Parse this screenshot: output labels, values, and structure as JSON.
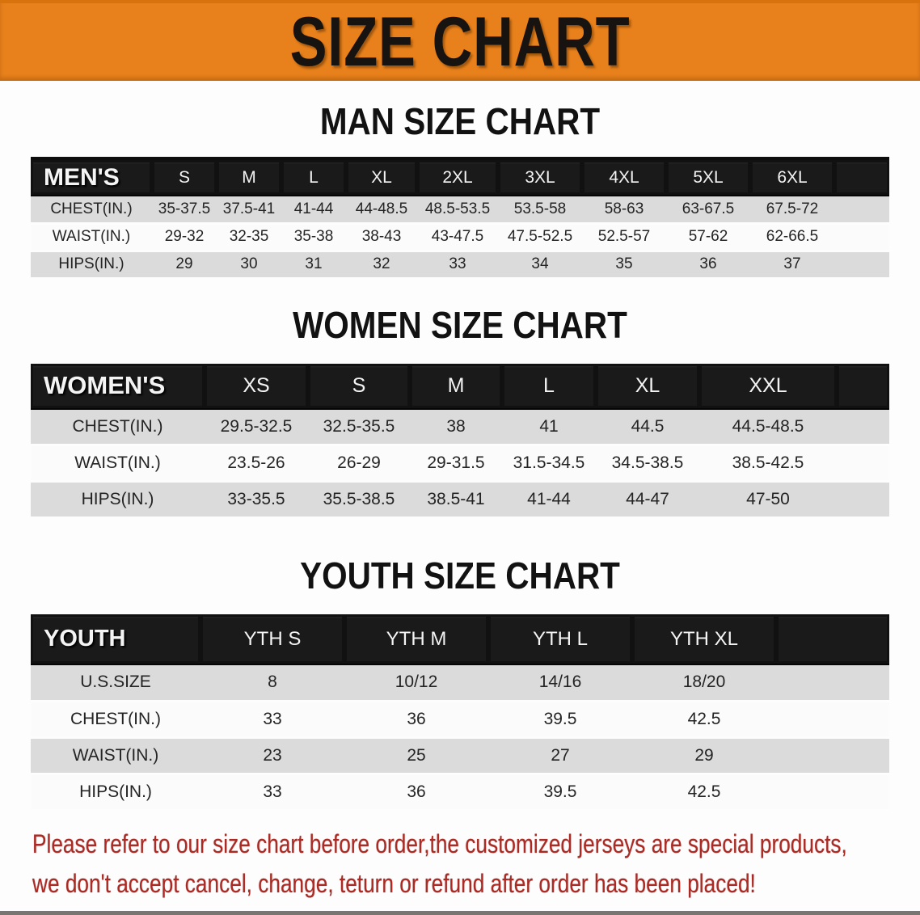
{
  "banner": {
    "title": "SIZE CHART"
  },
  "sections": [
    {
      "heading": "MAN SIZE CHART",
      "table": {
        "label": "MEN'S",
        "columns": [
          "S",
          "M",
          "L",
          "XL",
          "2XL",
          "3XL",
          "4XL",
          "5XL",
          "6XL"
        ],
        "rows": [
          {
            "label": "CHEST(IN.)",
            "values": [
              "35-37.5",
              "37.5-41",
              "41-44",
              "44-48.5",
              "48.5-53.5",
              "53.5-58",
              "58-63",
              "63-67.5",
              "67.5-72"
            ]
          },
          {
            "label": "WAIST(IN.)",
            "values": [
              "29-32",
              "32-35",
              "35-38",
              "38-43",
              "43-47.5",
              "47.5-52.5",
              "52.5-57",
              "57-62",
              "62-66.5"
            ]
          },
          {
            "label": "HIPS(IN.)",
            "values": [
              "29",
              "30",
              "31",
              "32",
              "33",
              "34",
              "35",
              "36",
              "37"
            ]
          }
        ]
      }
    },
    {
      "heading": "WOMEN SIZE CHART",
      "table": {
        "label": "WOMEN'S",
        "columns": [
          "XS",
          "S",
          "M",
          "L",
          "XL",
          "XXL"
        ],
        "rows": [
          {
            "label": "CHEST(IN.)",
            "values": [
              "29.5-32.5",
              "32.5-35.5",
              "38",
              "41",
              "44.5",
              "44.5-48.5"
            ]
          },
          {
            "label": "WAIST(IN.)",
            "values": [
              "23.5-26",
              "26-29",
              "29-31.5",
              "31.5-34.5",
              "34.5-38.5",
              "38.5-42.5"
            ]
          },
          {
            "label": "HIPS(IN.)",
            "values": [
              "33-35.5",
              "35.5-38.5",
              "38.5-41",
              "41-44",
              "44-47",
              "47-50"
            ]
          }
        ]
      }
    },
    {
      "heading": "YOUTH SIZE CHART",
      "table": {
        "label": "YOUTH",
        "columns": [
          "YTH S",
          "YTH M",
          "YTH L",
          "YTH XL"
        ],
        "rows": [
          {
            "label": "U.S.SIZE",
            "values": [
              "8",
              "10/12",
              "14/16",
              "18/20"
            ]
          },
          {
            "label": "CHEST(IN.)",
            "values": [
              "33",
              "36",
              "39.5",
              "42.5"
            ]
          },
          {
            "label": "WAIST(IN.)",
            "values": [
              "23",
              "25",
              "27",
              "29"
            ]
          },
          {
            "label": "HIPS(IN.)",
            "values": [
              "33",
              "36",
              "39.5",
              "42.5"
            ]
          }
        ]
      }
    }
  ],
  "disclaimer": {
    "line1": "Please refer to our size chart before order,the customized jerseys are special products,",
    "line2": "we don't accept cancel, change, teturn or refund after order has been placed!"
  },
  "colors": {
    "banner_orange": "#E8811B",
    "header_black": "#1A1A1A",
    "row_gray": "#DBDBDB",
    "disclaimer_red": "#AB2B24"
  }
}
